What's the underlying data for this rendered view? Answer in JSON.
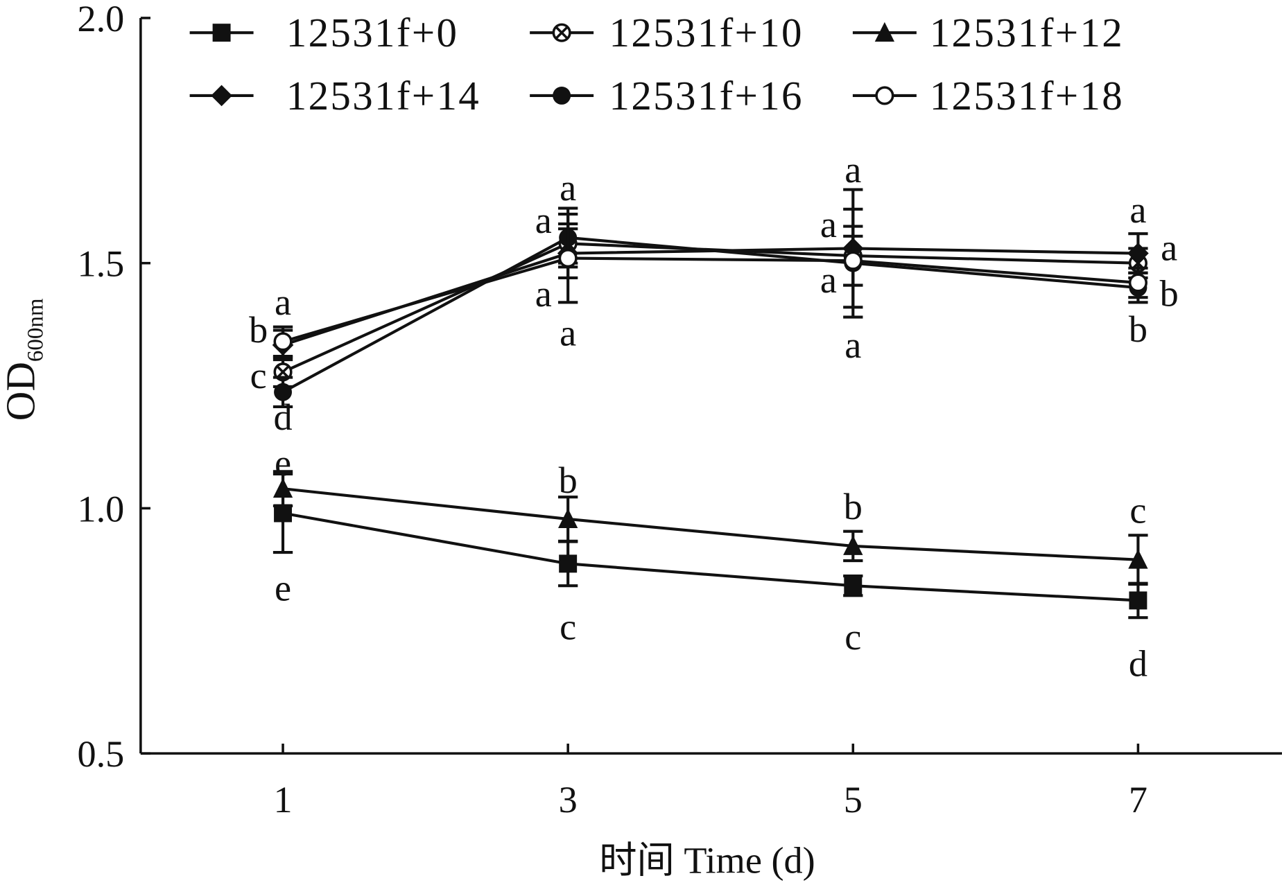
{
  "chart_data": {
    "type": "line",
    "title": "",
    "xlabel": "时间 Time (d)",
    "ylabel_main": "OD",
    "ylabel_sub": "600nm",
    "x": [
      1,
      3,
      5,
      7
    ],
    "xticks": [
      "1",
      "3",
      "5",
      "7"
    ],
    "yticks": [
      "0.5",
      "1.0",
      "1.5",
      "2.0"
    ],
    "ylim": [
      0.5,
      2.0
    ],
    "xlim": [
      0,
      8
    ],
    "legend_position": "top",
    "series": [
      {
        "name": "12531f+0",
        "marker": "square",
        "values": [
          0.99,
          0.887,
          0.842,
          0.812
        ],
        "errors": [
          0.08,
          0.045,
          0.02,
          0.035
        ]
      },
      {
        "name": "12531f+10",
        "marker": "circle-x",
        "values": [
          1.278,
          1.54,
          1.515,
          1.5
        ],
        "errors": [
          0.03,
          0.04,
          0.06,
          0.03
        ]
      },
      {
        "name": "12531f+12",
        "marker": "triangle",
        "values": [
          1.04,
          0.978,
          0.923,
          0.895
        ],
        "errors": [
          0.035,
          0.045,
          0.03,
          0.05
        ]
      },
      {
        "name": "12531f+14",
        "marker": "diamond",
        "values": [
          1.333,
          1.52,
          1.53,
          1.52
        ],
        "errors": [
          0.03,
          0.05,
          0.12,
          0.04
        ]
      },
      {
        "name": "12531f+16",
        "marker": "filled-circle",
        "values": [
          1.237,
          1.552,
          1.5,
          1.45
        ],
        "errors": [
          0.03,
          0.06,
          0.11,
          0.03
        ]
      },
      {
        "name": "12531f+18",
        "marker": "open-circle",
        "values": [
          1.34,
          1.51,
          1.505,
          1.46
        ],
        "errors": [
          0.03,
          0.09,
          0.05,
          0.03
        ]
      }
    ],
    "annotations": [
      {
        "x": 1,
        "y": 1.42,
        "text": "a",
        "side": "center"
      },
      {
        "x": 1,
        "y": 1.35,
        "text": "b",
        "side": "left"
      },
      {
        "x": 1,
        "y": 1.283,
        "text": "c",
        "side": "left"
      },
      {
        "x": 1,
        "y": 1.167,
        "text": "d",
        "side": "center"
      },
      {
        "x": 1,
        "y": 1.11,
        "text": "e",
        "side": "center"
      },
      {
        "x": 1,
        "y": 0.837,
        "text": "e",
        "side": "center"
      },
      {
        "x": 3,
        "y": 1.653,
        "text": "a",
        "side": "center"
      },
      {
        "x": 3,
        "y": 1.587,
        "text": "a",
        "side": "left"
      },
      {
        "x": 3,
        "y": 1.437,
        "text": "a",
        "side": "left"
      },
      {
        "x": 3,
        "y": 1.357,
        "text": "a",
        "side": "center"
      },
      {
        "x": 3,
        "y": 1.057,
        "text": "b",
        "side": "center"
      },
      {
        "x": 3,
        "y": 0.758,
        "text": "c",
        "side": "center"
      },
      {
        "x": 5,
        "y": 1.69,
        "text": "a",
        "side": "center"
      },
      {
        "x": 5,
        "y": 1.578,
        "text": "a",
        "side": "left"
      },
      {
        "x": 5,
        "y": 1.465,
        "text": "a",
        "side": "left"
      },
      {
        "x": 5,
        "y": 1.332,
        "text": "a",
        "side": "center"
      },
      {
        "x": 5,
        "y": 1.003,
        "text": "b",
        "side": "center"
      },
      {
        "x": 5,
        "y": 0.737,
        "text": "c",
        "side": "center"
      },
      {
        "x": 7,
        "y": 1.608,
        "text": "a",
        "side": "center"
      },
      {
        "x": 7,
        "y": 1.52,
        "text": "a",
        "side": "right"
      },
      {
        "x": 7,
        "y": 1.448,
        "text": "b",
        "side": "right"
      },
      {
        "x": 7,
        "y": 1.365,
        "text": "b",
        "side": "center"
      },
      {
        "x": 7,
        "y": 0.995,
        "text": "c",
        "side": "center"
      },
      {
        "x": 7,
        "y": 0.683,
        "text": "d",
        "side": "center"
      }
    ],
    "line_color": "#111111"
  }
}
